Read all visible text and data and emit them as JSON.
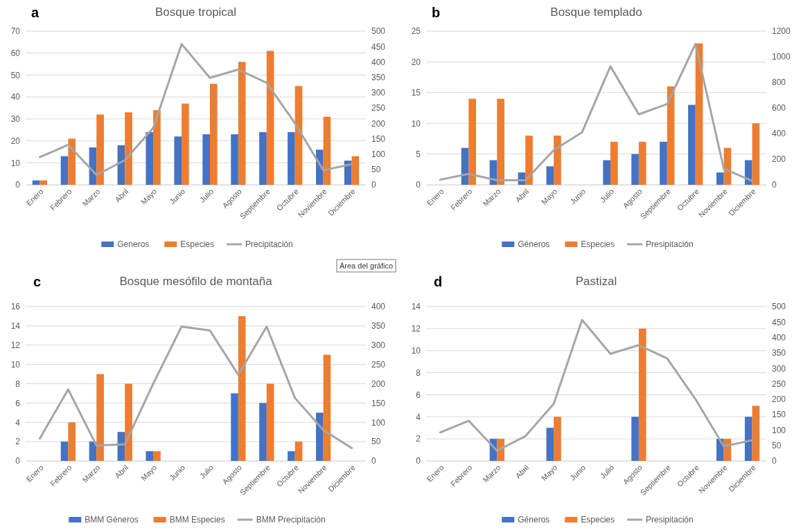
{
  "chart_data": [
    {
      "type": "bar",
      "title": "Bosque tropical",
      "annotations": [
        "a",
        "Área del gráfico"
      ],
      "categories": [
        "Enero",
        "Febrero",
        "Marzo",
        "Abril",
        "Mayo",
        "Junio",
        "Julio",
        "Agosto",
        "Septiembre",
        "Octubre",
        "Noviembre",
        "Diciembre"
      ],
      "series": [
        {
          "name": "Generos",
          "color": "#4472c4",
          "values": [
            2,
            13,
            17,
            18,
            24,
            22,
            23,
            23,
            24,
            24,
            16,
            11
          ]
        },
        {
          "name": "Especies",
          "color": "#ed7d31",
          "values": [
            2,
            21,
            32,
            33,
            34,
            37,
            46,
            56,
            61,
            45,
            31,
            13
          ]
        },
        {
          "name": "Precipitación",
          "type": "line",
          "axis": "y2",
          "color": "#a5a5a5",
          "values": [
            90,
            130,
            32,
            80,
            185,
            458,
            348,
            375,
            332,
            200,
            47,
            67
          ]
        }
      ],
      "ylim": [
        0,
        70
      ],
      "yticks": [
        0,
        10,
        20,
        30,
        40,
        50,
        60,
        70
      ],
      "y2lim": [
        0,
        500
      ],
      "y2ticks": [
        0,
        50,
        100,
        150,
        200,
        250,
        300,
        350,
        400,
        450,
        500
      ],
      "grid": "y",
      "legend": "bottom"
    },
    {
      "type": "bar",
      "title": "Bosque templado",
      "annotations": [
        "b"
      ],
      "categories": [
        "Enero",
        "Febrero",
        "Marzo",
        "Abril",
        "Mayo",
        "Junio",
        "Julio",
        "Agosto",
        "Septiembre",
        "Octubre",
        "Noviembre",
        "Diciembre"
      ],
      "series": [
        {
          "name": "Géneros",
          "color": "#4472c4",
          "values": [
            null,
            6,
            4,
            2,
            3,
            null,
            4,
            5,
            7,
            13,
            2,
            4
          ]
        },
        {
          "name": "Especies",
          "color": "#ed7d31",
          "values": [
            null,
            14,
            14,
            8,
            8,
            null,
            7,
            7,
            16,
            23,
            6,
            10
          ]
        },
        {
          "name": "Presipitación",
          "type": "line",
          "axis": "y2",
          "color": "#a5a5a5",
          "values": [
            40,
            85,
            35,
            35,
            270,
            410,
            925,
            550,
            630,
            1100,
            125,
            30
          ]
        }
      ],
      "ylim": [
        0,
        25
      ],
      "yticks": [
        0,
        5,
        10,
        15,
        20,
        25
      ],
      "y2lim": [
        0,
        1200
      ],
      "y2ticks": [
        0,
        200,
        400,
        600,
        800,
        1000,
        1200
      ],
      "grid": "y",
      "legend": "bottom"
    },
    {
      "type": "bar",
      "title": "Bosque mesófilo de montaña",
      "annotations": [
        "c"
      ],
      "categories": [
        "Enero",
        "Febrero",
        "Marzo",
        "Abril",
        "Mayo",
        "Junio",
        "Julio",
        "Agosto",
        "Septiembre",
        "Octubre",
        "Noviembre",
        "Diciembre"
      ],
      "series": [
        {
          "name": "BMM Géneros",
          "color": "#4472c4",
          "values": [
            null,
            2,
            2,
            3,
            1,
            null,
            null,
            7,
            6,
            1,
            5,
            null
          ]
        },
        {
          "name": "BMM Especies",
          "color": "#ed7d31",
          "values": [
            null,
            4,
            9,
            8,
            1,
            null,
            null,
            15,
            8,
            2,
            11,
            null
          ]
        },
        {
          "name": "BMM Precipitación",
          "type": "line",
          "axis": "y2",
          "color": "#a5a5a5",
          "values": [
            58,
            185,
            40,
            43,
            200,
            348,
            338,
            223,
            348,
            163,
            80,
            33
          ]
        }
      ],
      "ylim": [
        0,
        16
      ],
      "yticks": [
        0,
        2,
        4,
        6,
        8,
        10,
        12,
        14,
        16
      ],
      "y2lim": [
        0,
        400
      ],
      "y2ticks": [
        0,
        50,
        100,
        150,
        200,
        250,
        300,
        350,
        400
      ],
      "grid": "y",
      "legend": "bottom"
    },
    {
      "type": "bar",
      "title": "Pastizal",
      "annotations": [
        "d"
      ],
      "categories": [
        "Enero",
        "Febrero",
        "Marzo",
        "Abril",
        "Mayo",
        "Junio",
        "Julio",
        "Agosto",
        "Septiembre",
        "Octubre",
        "Noviembre",
        "Diciembre"
      ],
      "series": [
        {
          "name": "Géneros",
          "color": "#4472c4",
          "values": [
            null,
            null,
            2,
            null,
            3,
            null,
            null,
            4,
            null,
            null,
            2,
            4
          ]
        },
        {
          "name": "Especies",
          "color": "#ed7d31",
          "values": [
            null,
            null,
            2,
            null,
            4,
            null,
            null,
            12,
            null,
            null,
            2,
            5
          ]
        },
        {
          "name": "Presipitación",
          "type": "line",
          "axis": "y2",
          "color": "#a5a5a5",
          "values": [
            92,
            130,
            33,
            80,
            185,
            457,
            347,
            375,
            332,
            200,
            47,
            67
          ]
        }
      ],
      "ylim": [
        0,
        14
      ],
      "yticks": [
        0,
        2,
        4,
        6,
        8,
        10,
        12,
        14
      ],
      "y2lim": [
        0,
        500
      ],
      "y2ticks": [
        0,
        50,
        100,
        150,
        200,
        250,
        300,
        350,
        400,
        450,
        500
      ],
      "grid": "y",
      "legend": "bottom"
    }
  ]
}
